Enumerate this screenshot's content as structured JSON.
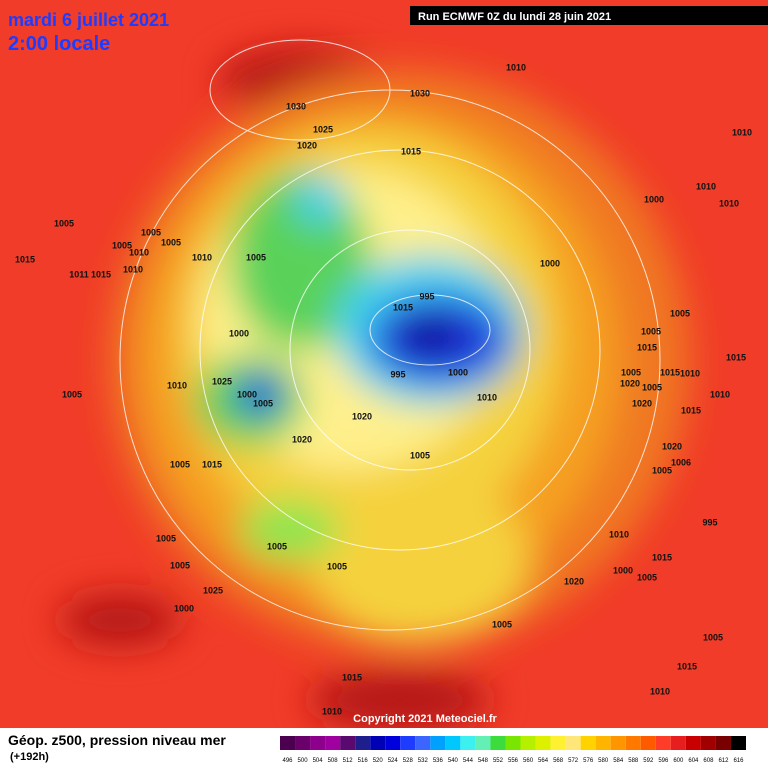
{
  "header": {
    "date": "mardi 6 juillet 2021",
    "time": "2:00 locale",
    "run": "Run ECMWF 0Z du lundi 28 juin 2021"
  },
  "map": {
    "isobar_labels": [
      1010,
      1030,
      1030,
      1025,
      1020,
      1015,
      1010,
      1010,
      1000,
      1010,
      1005,
      1005,
      1005,
      1005,
      1010,
      1015,
      1010,
      1005,
      1011,
      1015,
      1010,
      1000,
      995,
      1015,
      1005,
      1000,
      1005,
      1015,
      1015,
      1025,
      1010,
      995,
      1000,
      1005,
      1015,
      1010,
      1005,
      1020,
      1005,
      1000,
      1005,
      1010,
      1010,
      1020,
      1015,
      1020,
      1020,
      1020,
      1005,
      1005,
      1015,
      1006,
      1005,
      995,
      1010,
      1005,
      1005,
      1015,
      1005,
      1005,
      1000,
      1005,
      1020,
      1025,
      1000,
      1005,
      1005,
      1015,
      1015,
      1010,
      1010
    ]
  },
  "copyright": "Copyright 2021 Meteociel.fr",
  "footer": {
    "title": "Géop. z500, pression niveau mer",
    "lead": "(+192h)"
  },
  "colorbar": {
    "labels": [
      496,
      500,
      504,
      508,
      512,
      516,
      520,
      524,
      528,
      532,
      536,
      540,
      544,
      548,
      552,
      556,
      560,
      564,
      568,
      572,
      576,
      580,
      584,
      588,
      592,
      596,
      600,
      604,
      608,
      612,
      616
    ]
  }
}
